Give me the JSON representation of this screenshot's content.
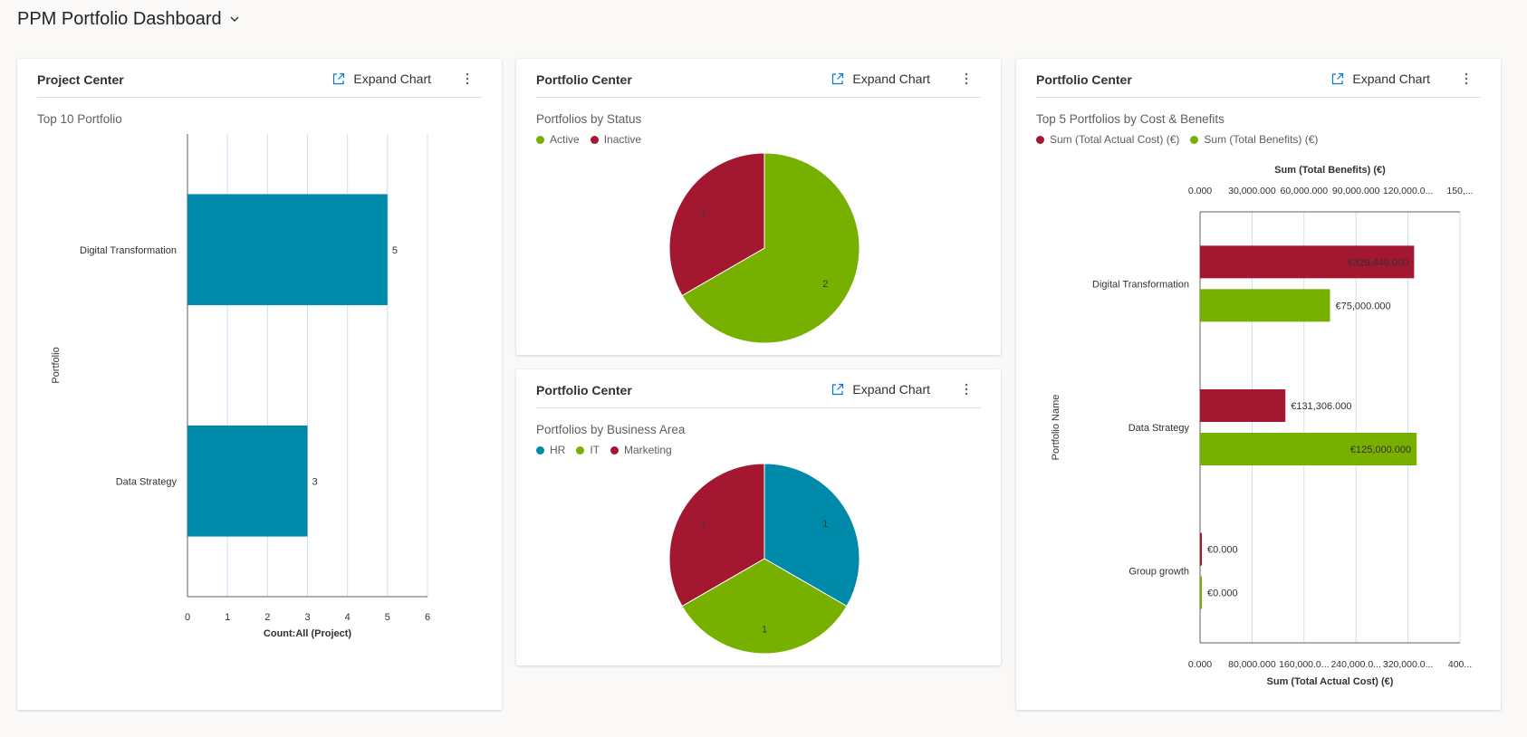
{
  "page": {
    "title": "PPM Portfolio Dashboard"
  },
  "colors": {
    "teal": "#008aaa",
    "green": "#78b000",
    "crimson": "#a31830",
    "grid": "#c7e0f4",
    "axis": "#605e5c"
  },
  "cards": [
    {
      "title": "Project Center",
      "expand_label": "Expand Chart",
      "chart_title": "Top 10 Portfolio"
    },
    {
      "title": "Portfolio Center",
      "expand_label": "Expand Chart",
      "chart_title": "Portfolios by Status"
    },
    {
      "title": "Portfolio Center",
      "expand_label": "Expand Chart",
      "chart_title": "Portfolios by Business Area"
    },
    {
      "title": "Portfolio Center",
      "expand_label": "Expand Chart",
      "chart_title": "Top 5 Portfolios by Cost & Benefits"
    }
  ],
  "chart_data": [
    {
      "type": "bar",
      "title": "Top 10 Portfolio",
      "categories": [
        "Digital Transformation",
        "Data Strategy"
      ],
      "values": [
        5,
        3
      ],
      "data_labels": [
        "5",
        "3"
      ],
      "xlabel": "Count:All (Project)",
      "ylabel": "Portfolio",
      "xlim": [
        0,
        6
      ],
      "xticks": [
        "0",
        "1",
        "2",
        "3",
        "4",
        "5",
        "6"
      ],
      "grid": true,
      "color": "#008aaa"
    },
    {
      "type": "pie",
      "title": "Portfolios by Status",
      "labels": [
        "Active",
        "Inactive"
      ],
      "values": [
        2,
        1
      ],
      "data_labels": [
        "2",
        "1"
      ],
      "colors": [
        "#78b000",
        "#a31830"
      ],
      "legend": "top-left"
    },
    {
      "type": "pie",
      "title": "Portfolios by Business Area",
      "labels": [
        "HR",
        "IT",
        "Marketing"
      ],
      "values": [
        1,
        1,
        1
      ],
      "data_labels": [
        "1",
        "1",
        "1"
      ],
      "colors": [
        "#008aaa",
        "#78b000",
        "#a31830"
      ],
      "legend": "top-left"
    },
    {
      "type": "bar",
      "title": "Top 5 Portfolios by Cost & Benefits",
      "categories": [
        "Digital Transformation",
        "Data Strategy",
        "Group growth"
      ],
      "series": [
        {
          "name": "Sum (Total Actual Cost) (€)",
          "values": [
            329449,
            131306,
            0
          ],
          "labels": [
            "€329,449.000",
            "€131,306.000",
            "€0.000"
          ],
          "color": "#a31830",
          "axis": "bottom"
        },
        {
          "name": "Sum (Total Benefits) (€)",
          "values": [
            75000,
            125000,
            0
          ],
          "labels": [
            "€75,000.000",
            "€125,000.000",
            "€0.000"
          ],
          "color": "#78b000",
          "axis": "top"
        }
      ],
      "xlabel_bottom": "Sum (Total Actual Cost) (€)",
      "xlabel_top": "Sum (Total Benefits) (€)",
      "ylabel": "Portfolio Name",
      "xlim_bottom": [
        0,
        400000
      ],
      "xlim_top": [
        0,
        150000
      ],
      "xticks_bottom": [
        "0.000",
        "80,000.000",
        "160,000.0...",
        "240,000.0...",
        "320,000.0...",
        "400..."
      ],
      "xticks_top": [
        "0.000",
        "30,000.000",
        "60,000.000",
        "90,000.000",
        "120,000.0...",
        "150,..."
      ],
      "grid": true,
      "legend": "top-left"
    }
  ]
}
